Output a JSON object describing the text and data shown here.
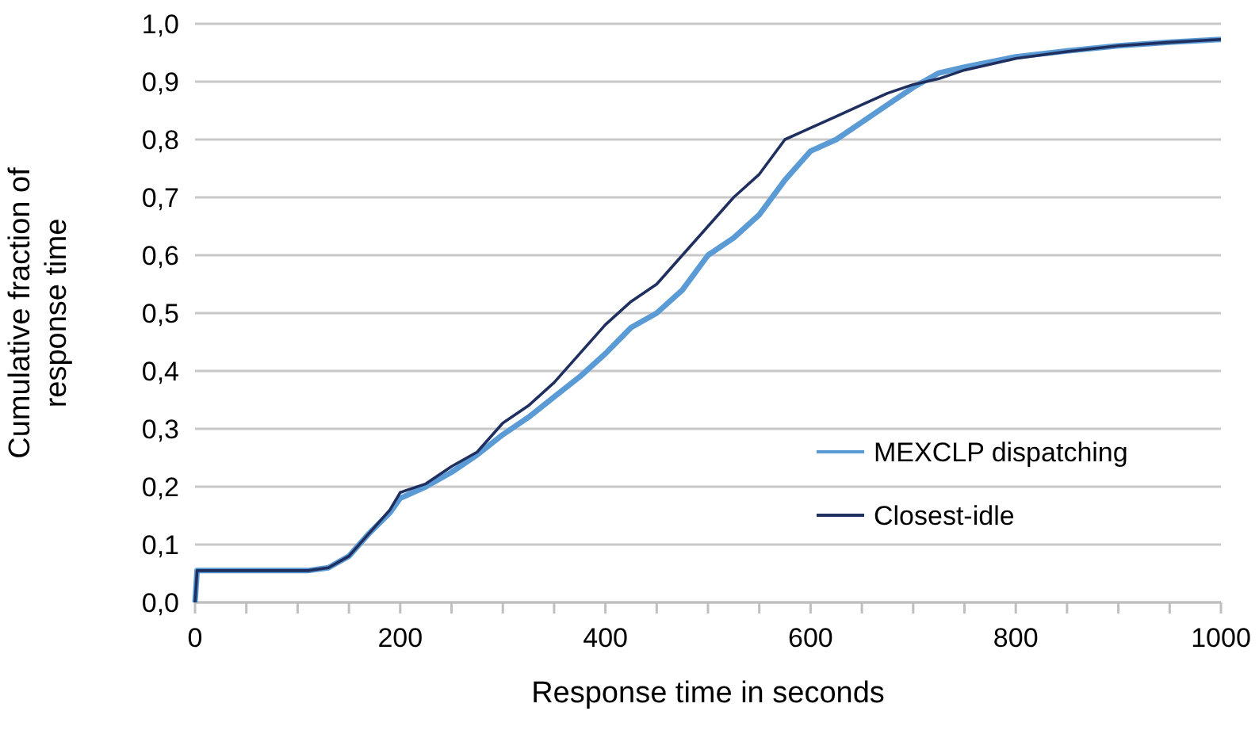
{
  "chart_data": {
    "type": "line",
    "xlabel": "Response time in seconds",
    "ylabel": "Cumulative fraction of response time",
    "xlim": [
      0,
      1000
    ],
    "ylim": [
      0,
      1
    ],
    "xticks": [
      0,
      {
        "value": 50,
        "label": null
      },
      {
        "value": 100,
        "label": null
      },
      {
        "value": 150,
        "label": null
      },
      200,
      {
        "value": 250,
        "label": null
      },
      {
        "value": 300,
        "label": null
      },
      {
        "value": 350,
        "label": null
      },
      400,
      {
        "value": 450,
        "label": null
      },
      {
        "value": 500,
        "label": null
      },
      {
        "value": 550,
        "label": null
      },
      600,
      {
        "value": 650,
        "label": null
      },
      {
        "value": 700,
        "label": null
      },
      {
        "value": 750,
        "label": null
      },
      800,
      {
        "value": 850,
        "label": null
      },
      {
        "value": 900,
        "label": null
      },
      {
        "value": 950,
        "label": null
      },
      1000
    ],
    "yticks": [
      {
        "value": 0,
        "label": "0,0"
      },
      {
        "value": 0.1,
        "label": "0,1"
      },
      {
        "value": 0.2,
        "label": "0,2"
      },
      {
        "value": 0.3,
        "label": "0,3"
      },
      {
        "value": 0.4,
        "label": "0,4"
      },
      {
        "value": 0.5,
        "label": "0,5"
      },
      {
        "value": 0.6,
        "label": "0,6"
      },
      {
        "value": 0.7,
        "label": "0,7"
      },
      {
        "value": 0.8,
        "label": "0,8"
      },
      {
        "value": 0.9,
        "label": "0,9"
      },
      {
        "value": 1,
        "label": "1,0"
      }
    ],
    "grid": "y",
    "legend": "bottom right",
    "marker": "none",
    "line_style": "solid",
    "x": [
      0,
      2,
      110,
      130,
      150,
      170,
      190,
      200,
      225,
      250,
      275,
      300,
      325,
      350,
      375,
      400,
      425,
      450,
      475,
      500,
      525,
      550,
      575,
      600,
      625,
      650,
      675,
      700,
      725,
      750,
      800,
      850,
      900,
      950,
      1000
    ],
    "series": [
      {
        "name": "MEXCLP dispatching",
        "color": "#5b9bd5",
        "values": [
          0,
          0.055,
          0.055,
          0.06,
          0.08,
          0.12,
          0.155,
          0.18,
          0.2,
          0.225,
          0.255,
          0.29,
          0.32,
          0.355,
          0.39,
          0.43,
          0.475,
          0.5,
          0.54,
          0.6,
          0.63,
          0.67,
          0.73,
          0.78,
          0.8,
          0.83,
          0.86,
          0.89,
          0.915,
          0.925,
          0.943,
          0.953,
          0.962,
          0.968,
          0.973
        ]
      },
      {
        "name": "Closest-idle",
        "color": "#1f2f5f",
        "values": [
          0,
          0.055,
          0.055,
          0.06,
          0.08,
          0.12,
          0.16,
          0.19,
          0.205,
          0.235,
          0.26,
          0.31,
          0.34,
          0.38,
          0.43,
          0.48,
          0.52,
          0.55,
          0.6,
          0.65,
          0.7,
          0.74,
          0.8,
          0.82,
          0.84,
          0.86,
          0.88,
          0.895,
          0.905,
          0.92,
          0.94,
          0.952,
          0.962,
          0.968,
          0.973
        ]
      }
    ]
  }
}
